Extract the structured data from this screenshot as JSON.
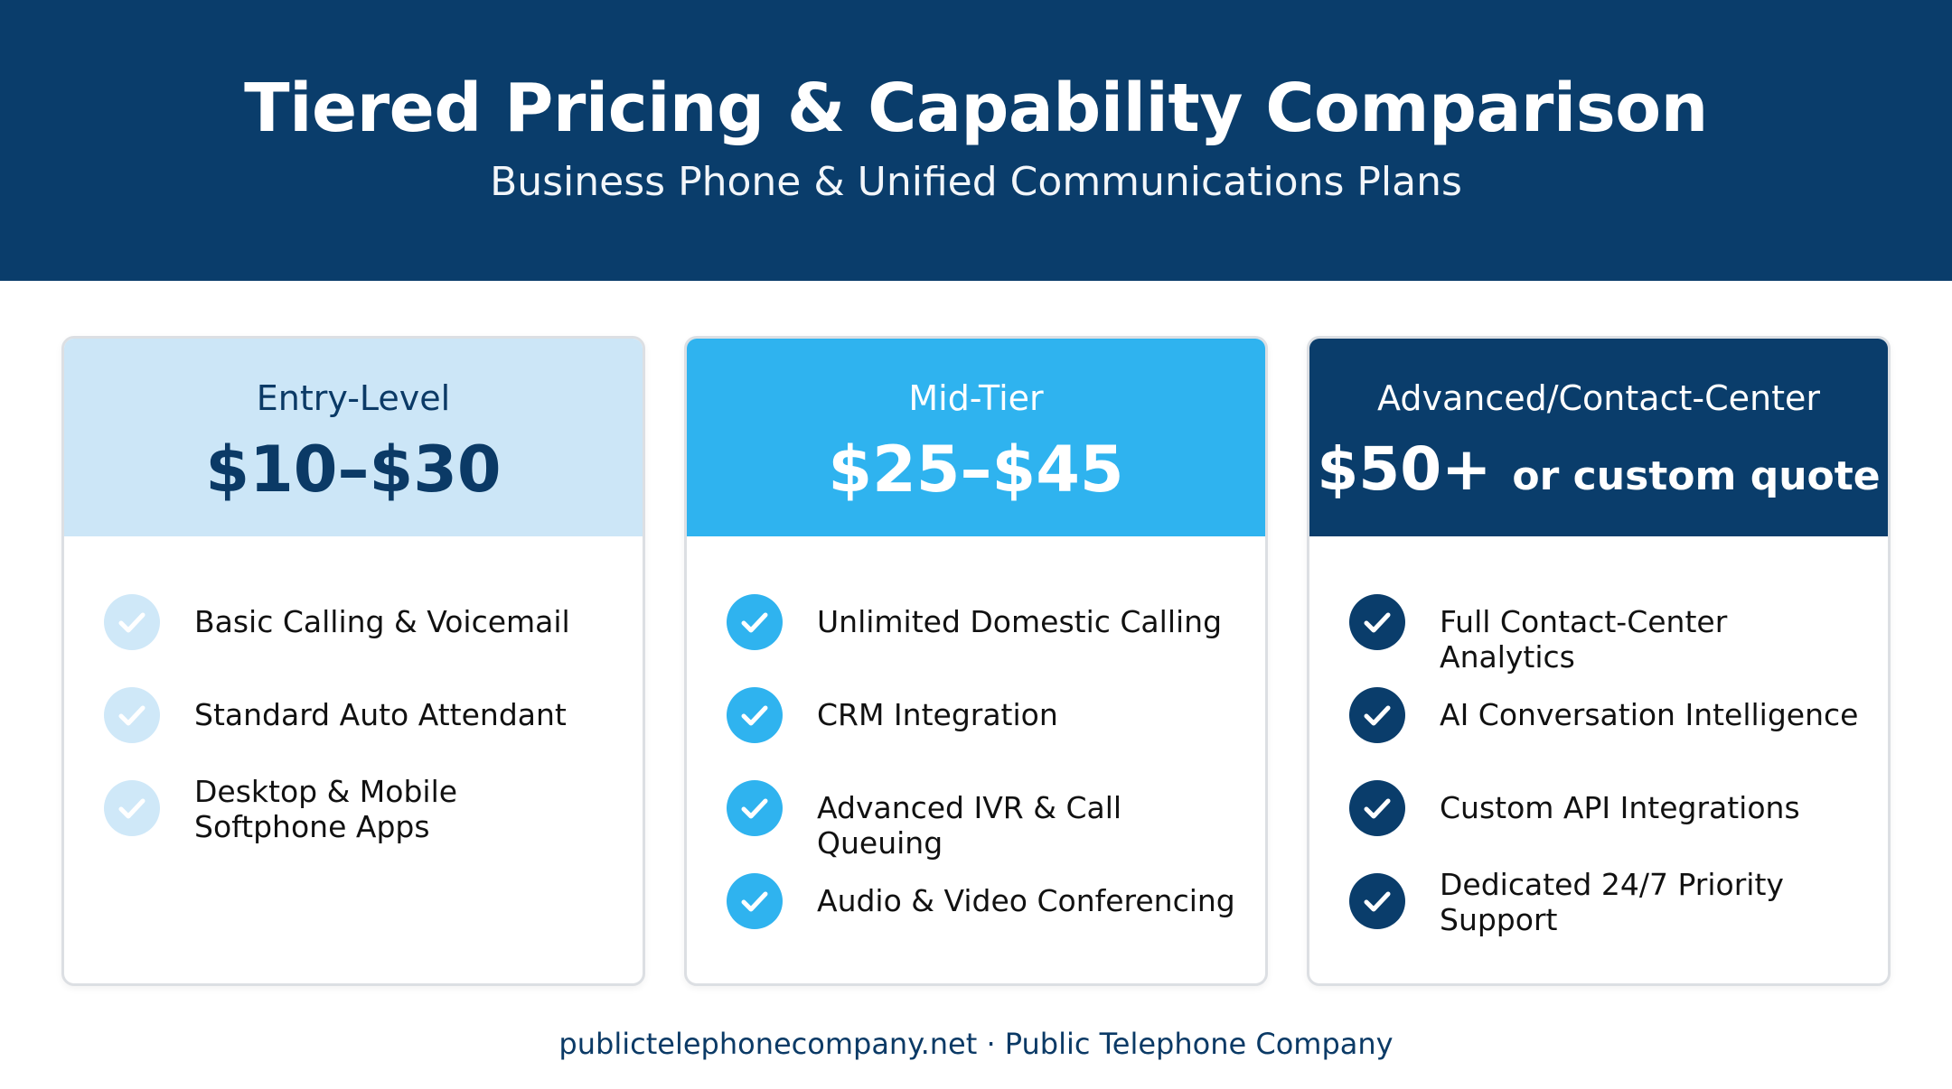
{
  "header": {
    "title": "Tiered Pricing & Capability Comparison",
    "subtitle": "Business Phone & Unified Communications Plans"
  },
  "colors": {
    "banner": "#0a3d6b",
    "entry_header": "#cce6f7",
    "mid_header": "#2fb3ef",
    "advanced_header": "#0a3d6b",
    "footer_text": "#0b3a66"
  },
  "tiers": [
    {
      "name": "Entry-Level",
      "price": "$10–$30",
      "price_suffix": "",
      "check_icon": "check-circle-icon",
      "features": [
        "Basic Calling & Voicemail",
        "Standard Auto Attendant",
        "Desktop & Mobile Softphone Apps"
      ]
    },
    {
      "name": "Mid-Tier",
      "price": "$25–$45",
      "price_suffix": "",
      "check_icon": "check-circle-icon",
      "features": [
        "Unlimited Domestic Calling",
        "CRM Integration",
        "Advanced IVR & Call Queuing",
        "Audio & Video Conferencing"
      ]
    },
    {
      "name": "Advanced/Contact-Center",
      "price": "$50+",
      "price_suffix": "or custom quote",
      "check_icon": "check-circle-icon",
      "features": [
        "Full Contact-Center Analytics",
        "AI Conversation Intelligence",
        "Custom API Integrations",
        "Dedicated 24/7 Priority Support"
      ]
    }
  ],
  "footer": {
    "text": "publictelephonecompany.net · Public Telephone Company"
  }
}
